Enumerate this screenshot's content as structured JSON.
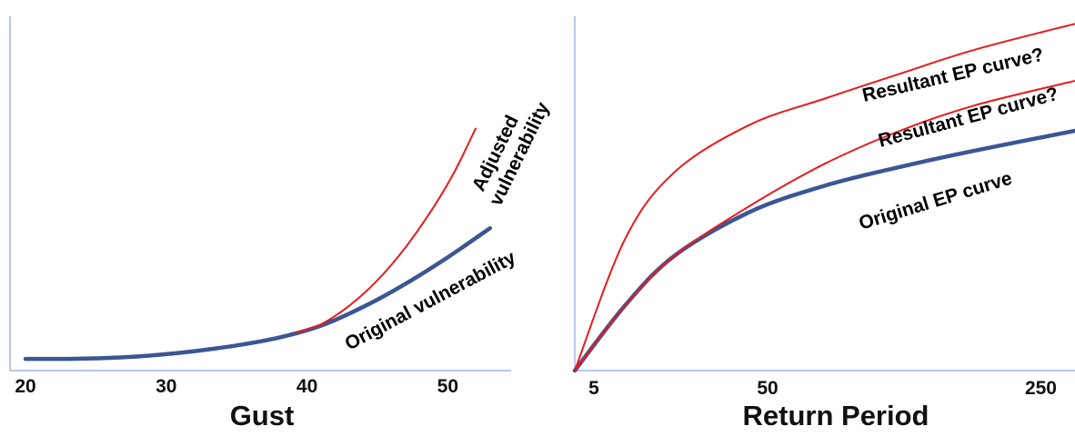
{
  "chart_data": [
    {
      "type": "line",
      "xlabel": "Gust",
      "ylabel": "",
      "xlim": [
        18.9,
        54.5
      ],
      "ylim": [
        0,
        1
      ],
      "x_ticks": [
        20,
        30,
        40,
        50
      ],
      "grid": false,
      "colors": {
        "original": "#3a5694",
        "adjusted": "#e8191d",
        "axis": "#8aa6d6"
      },
      "series": [
        {
          "name": "Original vulnerability",
          "points": [
            [
              20,
              0.033
            ],
            [
              23,
              0.033
            ],
            [
              26,
              0.036
            ],
            [
              29,
              0.043
            ],
            [
              32,
              0.055
            ],
            [
              35,
              0.071
            ],
            [
              38,
              0.093
            ],
            [
              41,
              0.127
            ],
            [
              44,
              0.18
            ],
            [
              47,
              0.245
            ],
            [
              50,
              0.32
            ],
            [
              53,
              0.402
            ]
          ]
        },
        {
          "name": "Adjusted vulnerability",
          "points": [
            [
              39.2,
              0.107
            ],
            [
              41,
              0.131
            ],
            [
              43,
              0.183
            ],
            [
              45,
              0.255
            ],
            [
              47,
              0.348
            ],
            [
              49,
              0.462
            ],
            [
              50.5,
              0.563
            ],
            [
              52,
              0.685
            ]
          ]
        }
      ],
      "annotations": [
        {
          "id": "adjusted-1",
          "text": "Adjusted"
        },
        {
          "id": "adjusted-2",
          "text": "vulnerability"
        },
        {
          "id": "original",
          "text": "Original vulnerability"
        }
      ]
    },
    {
      "type": "line",
      "xlabel": "Return Period",
      "ylabel": "",
      "x_ticks": [
        5,
        50,
        250
      ],
      "ylim": [
        0,
        1
      ],
      "grid": false,
      "colors": {
        "original": "#3a5694",
        "resultant": "#e8191d",
        "axis": "#8aa6d6"
      },
      "series": [
        {
          "name": "Original EP curve",
          "points": [
            [
              0,
              0
            ],
            [
              0.1,
              0.183
            ],
            [
              0.2,
              0.325
            ],
            [
              0.35,
              0.448
            ],
            [
              0.5,
              0.522
            ],
            [
              0.65,
              0.575
            ],
            [
              0.8,
              0.621
            ],
            [
              1,
              0.677
            ]
          ]
        },
        {
          "name": "Resultant EP curve? (upper)",
          "points": [
            [
              0,
              0
            ],
            [
              0.1,
              0.37
            ],
            [
              0.2,
              0.561
            ],
            [
              0.35,
              0.694
            ],
            [
              0.5,
              0.768
            ],
            [
              0.65,
              0.838
            ],
            [
              0.8,
              0.906
            ],
            [
              1,
              0.979
            ]
          ]
        },
        {
          "name": "Resultant EP curve? (middle)",
          "points": [
            [
              0,
              0
            ],
            [
              0.1,
              0.183
            ],
            [
              0.2,
              0.325
            ],
            [
              0.35,
              0.465
            ],
            [
              0.5,
              0.584
            ],
            [
              0.65,
              0.677
            ],
            [
              0.8,
              0.749
            ],
            [
              1,
              0.818
            ]
          ]
        }
      ],
      "annotations": [
        {
          "id": "resultant-1",
          "text": "Resultant EP curve?"
        },
        {
          "id": "resultant-2",
          "text": "Resultant EP curve?"
        },
        {
          "id": "original",
          "text": "Original EP curve"
        }
      ]
    }
  ]
}
